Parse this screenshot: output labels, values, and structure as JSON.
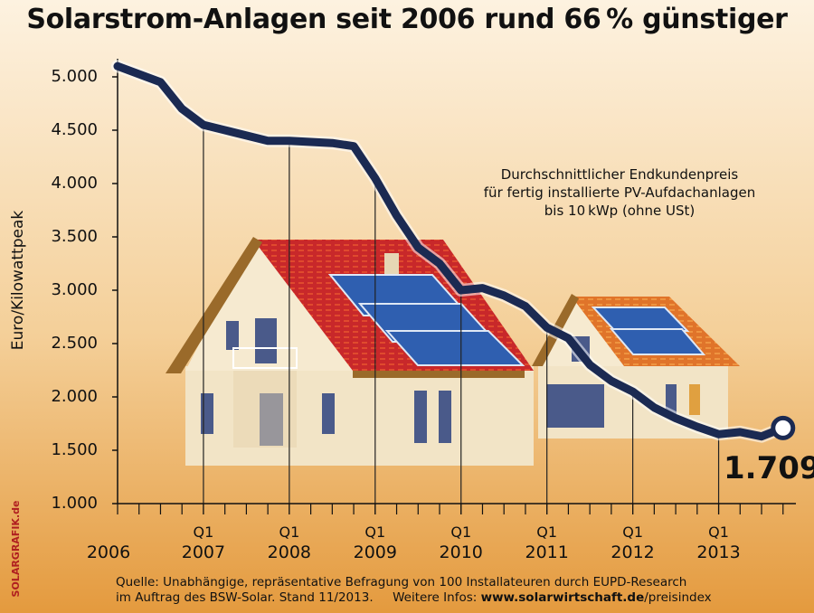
{
  "chart_data": {
    "type": "line",
    "title": "Solarstrom-Anlagen seit 2006 rund 66 % günstiger",
    "ylabel": "Euro/Kilowattpeak",
    "ylim": [
      1000,
      5000
    ],
    "yticks": [
      "5.000",
      "4.500",
      "4.000",
      "3.500",
      "3.000",
      "2.500",
      "2.000",
      "1.500",
      "1.000"
    ],
    "yticks_values": [
      5000,
      4500,
      4000,
      3500,
      3000,
      2500,
      2000,
      1500,
      1000
    ],
    "x_year_labels": [
      "2006",
      "2007",
      "2008",
      "2009",
      "2010",
      "2011",
      "2012",
      "2013"
    ],
    "x_quarter_label": "Q1",
    "annotation": [
      "Durchschnittlicher Endkundenpreis",
      "für fertig installierte  PV-Aufdachanlagen",
      "bis 10 kWp (ohne USt)"
    ],
    "end_value_label": "1.709",
    "series": [
      {
        "x": [
          2006.0,
          2006.5,
          2006.75,
          2007.0,
          2007.25,
          2007.75,
          2008.0,
          2008.5,
          2008.75,
          2009.0,
          2009.25,
          2009.5,
          2009.75,
          2010.0,
          2010.25,
          2010.5,
          2010.75,
          2011.0,
          2011.25,
          2011.5,
          2011.75,
          2012.0,
          2012.25,
          2012.5,
          2012.75,
          2013.0,
          2013.25,
          2013.5,
          2013.75
        ],
        "values": [
          5100,
          4950,
          4700,
          4550,
          4500,
          4400,
          4400,
          4380,
          4350,
          4050,
          3700,
          3400,
          3250,
          3000,
          3020,
          2950,
          2850,
          2650,
          2550,
          2300,
          2150,
          2050,
          1900,
          1800,
          1720,
          1650,
          1670,
          1630,
          1709
        ]
      }
    ]
  },
  "source_text": {
    "line1": "Quelle: Unabhängige, repräsentative Befragung von 100 Installateuren durch EUPD-Research",
    "line2_a": "im Auftrag des BSW-Solar. Stand 11/2013.",
    "line2_b": "Weitere Infos:",
    "line2_c": "www.solarwirtschaft.de",
    "line2_d": "/preisindex"
  },
  "credit": "SOLARGRAFIK.de",
  "colors": {
    "background_top": "#fdf0dc",
    "background_bottom": "#e8a34a",
    "line": "#1b2a52",
    "roof_red": "#c8282a",
    "panel_blue": "#2f5fb0",
    "wall": "#f2e4c6"
  }
}
